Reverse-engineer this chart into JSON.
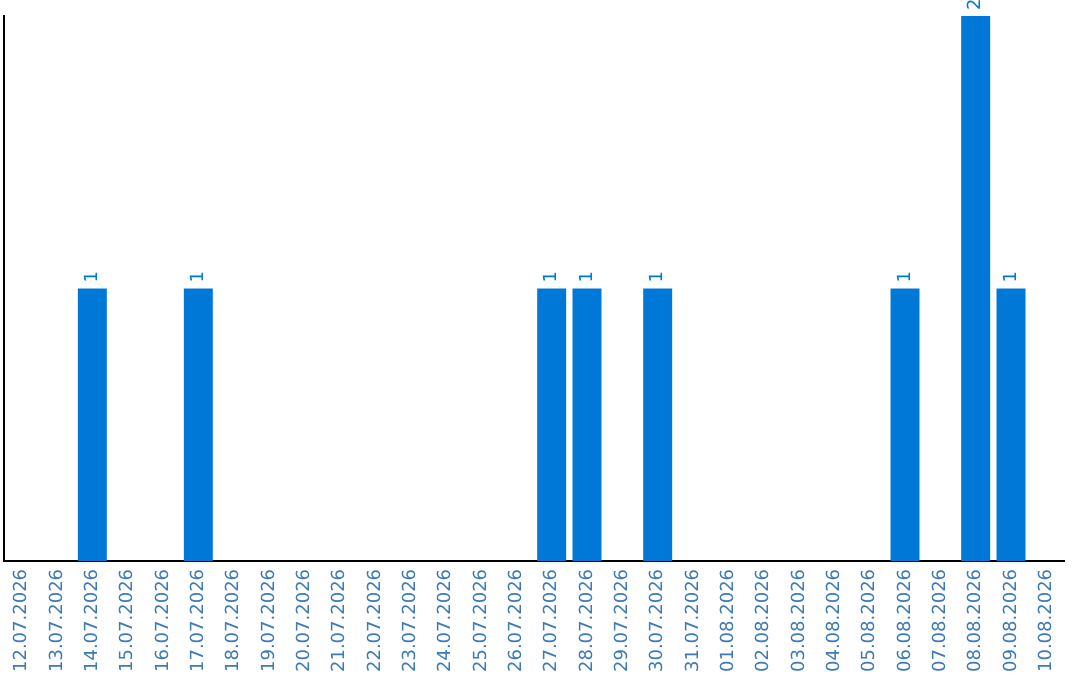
{
  "chart_data": {
    "type": "bar",
    "categories": [
      "12.07.2026",
      "13.07.2026",
      "14.07.2026",
      "15.07.2026",
      "16.07.2026",
      "17.07.2026",
      "18.07.2026",
      "19.07.2026",
      "20.07.2026",
      "21.07.2026",
      "22.07.2026",
      "23.07.2026",
      "24.07.2026",
      "25.07.2026",
      "26.07.2026",
      "27.07.2026",
      "28.07.2026",
      "29.07.2026",
      "30.07.2026",
      "31.07.2026",
      "01.08.2026",
      "02.08.2026",
      "03.08.2026",
      "04.08.2026",
      "05.08.2026",
      "06.08.2026",
      "07.08.2026",
      "08.08.2026",
      "09.08.2026",
      "10.08.2026"
    ],
    "values": [
      0,
      0,
      1,
      0,
      0,
      1,
      0,
      0,
      0,
      0,
      0,
      0,
      0,
      0,
      0,
      1,
      1,
      0,
      1,
      0,
      0,
      0,
      0,
      0,
      0,
      1,
      0,
      2,
      1,
      0
    ],
    "value_labels": [
      null,
      null,
      "1",
      null,
      null,
      "1",
      null,
      null,
      null,
      null,
      null,
      null,
      null,
      null,
      null,
      "1",
      "1",
      null,
      "1",
      null,
      null,
      null,
      null,
      null,
      null,
      "1",
      null,
      "2",
      "1",
      null
    ],
    "color": "#0078d7",
    "grid": false,
    "tick_labels": "x",
    "legend": false
  }
}
